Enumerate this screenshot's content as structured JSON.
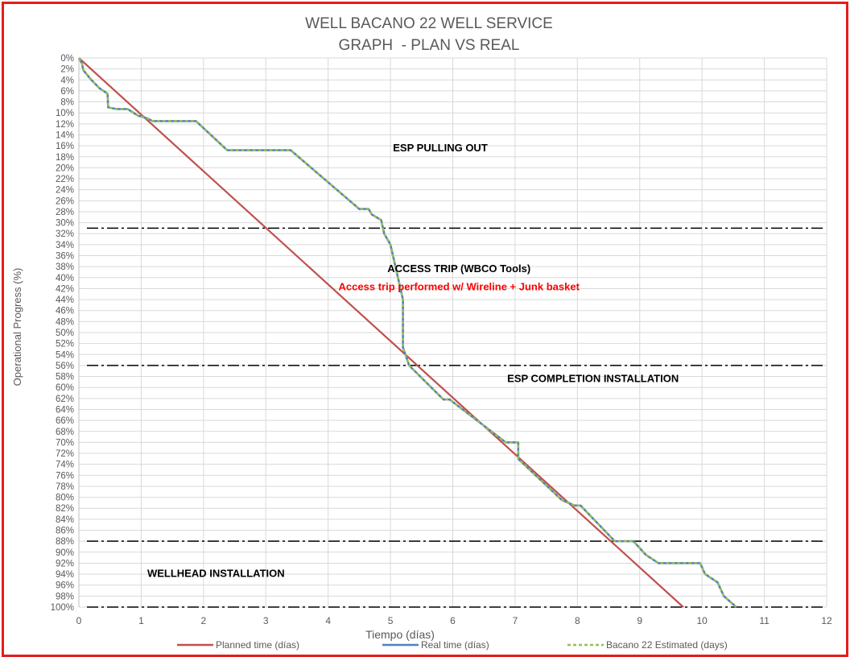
{
  "chart_data": {
    "type": "line",
    "title": "WELL BACANO 22 WELL SERVICE",
    "subtitle": "GRAPH  - PLAN VS REAL",
    "xlabel": "Tiempo (días)",
    "ylabel": "Operational Progress (%)",
    "xlim": [
      0,
      12
    ],
    "ylim": [
      0,
      100
    ],
    "y_inverted": true,
    "x_ticks": [
      "0",
      "1",
      "2",
      "3",
      "4",
      "5",
      "6",
      "7",
      "8",
      "9",
      "10",
      "11",
      "12"
    ],
    "y_ticks": [
      "0%",
      "2%",
      "4%",
      "6%",
      "8%",
      "10%",
      "12%",
      "14%",
      "16%",
      "18%",
      "20%",
      "22%",
      "24%",
      "26%",
      "28%",
      "30%",
      "32%",
      "34%",
      "36%",
      "38%",
      "40%",
      "42%",
      "44%",
      "46%",
      "48%",
      "50%",
      "52%",
      "54%",
      "56%",
      "58%",
      "60%",
      "62%",
      "64%",
      "66%",
      "68%",
      "70%",
      "72%",
      "74%",
      "76%",
      "78%",
      "80%",
      "82%",
      "84%",
      "86%",
      "88%",
      "90%",
      "92%",
      "94%",
      "96%",
      "98%",
      "100%"
    ],
    "grid": true,
    "legend_position": "bottom",
    "series": [
      {
        "name": "Planned time (días)",
        "color": "#c0504d",
        "style": "solid",
        "points": [
          [
            0,
            0
          ],
          [
            9.7,
            100
          ]
        ]
      },
      {
        "name": "Real time (días)",
        "color": "#4f81bd",
        "style": "solid",
        "points": [
          [
            0,
            0
          ],
          [
            0.05,
            1
          ],
          [
            0.07,
            2.2
          ],
          [
            0.2,
            4
          ],
          [
            0.33,
            5.5
          ],
          [
            0.46,
            6.5
          ],
          [
            0.47,
            9
          ],
          [
            0.6,
            9.3
          ],
          [
            0.78,
            9.3
          ],
          [
            0.95,
            10.5
          ],
          [
            1.1,
            11
          ],
          [
            1.18,
            11.5
          ],
          [
            1.5,
            11.5
          ],
          [
            1.88,
            11.5
          ],
          [
            2.38,
            16.8
          ],
          [
            3.4,
            16.8
          ],
          [
            4.5,
            27.5
          ],
          [
            4.65,
            27.5
          ],
          [
            4.7,
            28.5
          ],
          [
            4.85,
            29.5
          ],
          [
            4.9,
            32
          ],
          [
            5.0,
            34
          ],
          [
            5.2,
            44
          ],
          [
            5.2,
            52.7
          ],
          [
            5.3,
            56
          ],
          [
            5.85,
            62.2
          ],
          [
            5.95,
            62.2
          ],
          [
            6.85,
            70
          ],
          [
            7.05,
            70
          ],
          [
            7.05,
            73
          ],
          [
            7.75,
            80.5
          ],
          [
            7.95,
            81.5
          ],
          [
            8.05,
            81.5
          ],
          [
            8.6,
            88
          ],
          [
            8.9,
            88
          ],
          [
            9.1,
            90.5
          ],
          [
            9.3,
            92
          ],
          [
            9.97,
            92
          ],
          [
            10.05,
            94
          ],
          [
            10.25,
            95.5
          ],
          [
            10.35,
            98
          ],
          [
            10.55,
            100
          ]
        ]
      },
      {
        "name": "Bacano 22 Estimated (days)",
        "color": "#9bbb59",
        "style": "dashed",
        "points": [
          [
            0,
            0
          ],
          [
            0.05,
            1
          ],
          [
            0.07,
            2.2
          ],
          [
            0.2,
            4
          ],
          [
            0.33,
            5.5
          ],
          [
            0.46,
            6.5
          ],
          [
            0.47,
            9
          ],
          [
            0.6,
            9.3
          ],
          [
            0.78,
            9.3
          ],
          [
            0.95,
            10.5
          ],
          [
            1.1,
            11
          ],
          [
            1.18,
            11.5
          ],
          [
            1.5,
            11.5
          ],
          [
            1.88,
            11.5
          ],
          [
            2.38,
            16.8
          ],
          [
            3.4,
            16.8
          ],
          [
            4.5,
            27.5
          ],
          [
            4.65,
            27.5
          ],
          [
            4.7,
            28.5
          ],
          [
            4.85,
            29.5
          ],
          [
            4.9,
            32
          ],
          [
            5.0,
            34
          ],
          [
            5.2,
            44
          ],
          [
            5.2,
            52.7
          ],
          [
            5.3,
            56
          ],
          [
            5.85,
            62.2
          ],
          [
            5.95,
            62.2
          ],
          [
            6.85,
            70
          ],
          [
            7.05,
            70
          ],
          [
            7.05,
            73
          ],
          [
            7.75,
            80.5
          ],
          [
            7.95,
            81.5
          ],
          [
            8.05,
            81.5
          ],
          [
            8.6,
            88
          ],
          [
            8.9,
            88
          ],
          [
            9.1,
            90.5
          ],
          [
            9.3,
            92
          ],
          [
            9.97,
            92
          ],
          [
            10.05,
            94
          ],
          [
            10.25,
            95.5
          ],
          [
            10.35,
            98
          ],
          [
            10.55,
            100
          ]
        ]
      }
    ],
    "reference_lines": [
      {
        "y": 31,
        "style": "dash-dot",
        "color": "#000000"
      },
      {
        "y": 56,
        "style": "dash-dot",
        "color": "#000000"
      },
      {
        "y": 88,
        "style": "dash-dot",
        "color": "#000000"
      },
      {
        "y": 100,
        "style": "dash-dot",
        "color": "#000000"
      }
    ],
    "annotations": [
      {
        "id": "esp-pulling",
        "text": "ESP PULLING OUT",
        "x": 5.8,
        "y": 17,
        "color": "#000000"
      },
      {
        "id": "access-trip",
        "text": "ACCESS TRIP (WBCO Tools)",
        "x": 6.1,
        "y": 39,
        "color": "#000000"
      },
      {
        "id": "access-trip-note",
        "text": "Access trip performed w/ Wireline + Junk basket",
        "x": 6.1,
        "y": 42.3,
        "color": "#ff0000"
      },
      {
        "id": "esp-completion",
        "text": "ESP COMPLETION INSTALLATION",
        "x": 8.25,
        "y": 59,
        "color": "#000000"
      },
      {
        "id": "wellhead",
        "text": "WELLHEAD INSTALLATION",
        "x": 2.2,
        "y": 94.5,
        "color": "#000000"
      }
    ]
  }
}
